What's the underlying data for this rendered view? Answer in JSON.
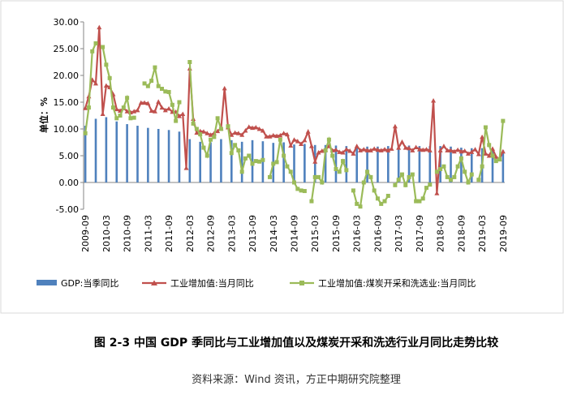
{
  "chart_data": {
    "type": "bar-line",
    "y_label": "单位：%",
    "categories": [
      "2009-09",
      null,
      null,
      null,
      null,
      null,
      "2010-03",
      null,
      null,
      null,
      null,
      null,
      "2010-09",
      null,
      null,
      null,
      null,
      null,
      "2011-03",
      null,
      null,
      null,
      null,
      null,
      "2011-09",
      null,
      null,
      null,
      null,
      null,
      "2012-03",
      null,
      null,
      null,
      null,
      null,
      "2012-09",
      null,
      null,
      null,
      null,
      null,
      "2013-03",
      null,
      null,
      null,
      null,
      null,
      "2013-09",
      null,
      null,
      null,
      null,
      null,
      "2014-03",
      null,
      null,
      null,
      null,
      null,
      "2014-09",
      null,
      null,
      null,
      null,
      null,
      "2015-03",
      null,
      null,
      null,
      null,
      null,
      "2015-09",
      null,
      null,
      null,
      null,
      null,
      "2016-03",
      null,
      null,
      null,
      null,
      null,
      "2016-09",
      null,
      null,
      null,
      null,
      null,
      "2017-03",
      null,
      null,
      null,
      null,
      null,
      "2017-09",
      null,
      null,
      null,
      null,
      null,
      "2018-03",
      null,
      null,
      null,
      null,
      null,
      "2018-09",
      null,
      null,
      null,
      null,
      null,
      "2019-03",
      null,
      null,
      null,
      null,
      null,
      "2019-09"
    ],
    "series": [
      {
        "name": "GDP:当季同比",
        "kind": "bar",
        "color": "#4f81bd",
        "values": [
          10.6,
          null,
          null,
          11.9,
          null,
          null,
          12.2,
          null,
          null,
          11.4,
          null,
          null,
          10.9,
          null,
          null,
          10.6,
          null,
          null,
          10.2,
          null,
          null,
          10.0,
          null,
          null,
          9.8,
          null,
          null,
          9.5,
          null,
          null,
          8.1,
          null,
          null,
          7.6,
          null,
          null,
          7.5,
          null,
          null,
          8.1,
          null,
          null,
          7.9,
          null,
          null,
          7.6,
          null,
          null,
          7.9,
          null,
          null,
          7.7,
          null,
          null,
          7.4,
          null,
          null,
          7.5,
          null,
          null,
          7.1,
          null,
          null,
          7.2,
          null,
          null,
          7.0,
          null,
          null,
          7.0,
          null,
          null,
          6.9,
          null,
          null,
          6.8,
          null,
          null,
          6.7,
          null,
          null,
          6.7,
          null,
          null,
          6.7,
          null,
          null,
          6.8,
          null,
          null,
          6.9,
          null,
          null,
          6.9,
          null,
          null,
          6.8,
          null,
          null,
          6.8,
          null,
          null,
          6.8,
          null,
          null,
          6.7,
          null,
          null,
          6.5,
          null,
          null,
          6.4,
          null,
          null,
          6.4,
          null,
          null,
          6.2,
          null,
          null,
          6.0
        ]
      },
      {
        "name": "工业增加值:当月同比",
        "kind": "line",
        "marker": "triangle",
        "color": "#c0504d",
        "values": [
          13.9,
          16.1,
          19.2,
          18.5,
          29.0,
          12.8,
          18.1,
          17.8,
          16.5,
          13.7,
          13.4,
          13.9,
          13.3,
          13.1,
          13.3,
          13.5,
          14.9,
          14.9,
          14.8,
          13.4,
          13.3,
          15.1,
          14.0,
          13.5,
          13.8,
          13.2,
          13.2,
          12.4,
          12.8,
          2.7,
          21.3,
          11.9,
          9.3,
          9.6,
          9.5,
          9.2,
          8.9,
          9.2,
          9.6,
          10.1,
          17.6,
          10.3,
          8.9,
          9.3,
          9.2,
          8.9,
          9.7,
          10.4,
          10.2,
          10.3,
          10.0,
          9.7,
          8.6,
          8.6,
          8.8,
          8.7,
          8.8,
          9.2,
          9.0,
          6.9,
          8.0,
          7.7,
          7.2,
          7.9,
          9.5,
          6.8,
          3.9,
          5.6,
          5.9,
          6.1,
          6.8,
          6.0,
          6.1,
          5.7,
          5.6,
          6.2,
          5.9,
          5.4,
          6.8,
          6.0,
          6.2,
          6.0,
          6.0,
          6.3,
          6.1,
          6.0,
          6.2,
          6.0,
          6.3,
          10.5,
          6.5,
          7.6,
          6.5,
          6.4,
          6.0,
          6.6,
          6.2,
          6.1,
          6.2,
          6.0,
          15.3,
          -2.0,
          6.0,
          6.8,
          6.0,
          6.0,
          5.8,
          6.1,
          5.8,
          5.9,
          5.4,
          5.7,
          6.2,
          5.3,
          8.5,
          5.4,
          5.0,
          6.3,
          4.8,
          4.4,
          5.8
        ]
      },
      {
        "name": "工业增加值:煤炭开采和洗选业:当月同比",
        "kind": "line",
        "marker": "square",
        "color": "#9bbb59",
        "values": [
          9.2,
          14.0,
          24.5,
          26.0,
          null,
          25.3,
          22.0,
          19.5,
          14.0,
          12.0,
          12.5,
          14.0,
          15.8,
          12.0,
          12.1,
          null,
          null,
          18.5,
          18.0,
          19.0,
          21.5,
          18.0,
          17.5,
          17.0,
          16.9,
          14.5,
          11.5,
          15.0,
          null,
          null,
          22.5,
          11.0,
          10.0,
          9.0,
          6.5,
          5.0,
          8.0,
          8.5,
          12.0,
          10.0,
          null,
          10.5,
          5.5,
          7.0,
          6.0,
          2.0,
          4.5,
          5.0,
          3.5,
          4.0,
          3.9,
          4.2,
          null,
          1.0,
          3.5,
          3.8,
          8.0,
          5.0,
          3.0,
          2.0,
          0.0,
          -1.2,
          -1.5,
          -1.6,
          null,
          -3.5,
          1.0,
          1.0,
          0.0,
          6.0,
          8.0,
          5.0,
          2.5,
          2.0,
          4.0,
          2.3,
          null,
          -1.5,
          -4.0,
          -4.5,
          0.0,
          2.0,
          1.0,
          -1.5,
          -3.0,
          -4.0,
          -3.5,
          -2.5,
          null,
          -0.5,
          0.5,
          1.5,
          -0.5,
          1.0,
          1.5,
          -3.5,
          -3.5,
          -3.0,
          -1.0,
          -0.4,
          null,
          2.0,
          2.5,
          3.0,
          1.0,
          0.5,
          1.0,
          3.0,
          4.5,
          2.0,
          0.0,
          1.5,
          null,
          0.5,
          3.0,
          10.3,
          7.0,
          5.0,
          4.0,
          4.3,
          11.5
        ]
      }
    ],
    "ylim": [
      -5,
      30
    ],
    "yticks": [
      {
        "value": -5,
        "label": "-5.00"
      },
      {
        "value": 0,
        "label": "0.00"
      },
      {
        "value": 5,
        "label": "5.00"
      },
      {
        "value": 10,
        "label": "10.00"
      },
      {
        "value": 15,
        "label": "15.00"
      },
      {
        "value": 20,
        "label": "20.00"
      },
      {
        "value": 25,
        "label": "25.00"
      },
      {
        "value": 30,
        "label": "30.00"
      }
    ],
    "grid": false,
    "legend": "bottom"
  },
  "caption": "图 2-3  中国 GDP 季同比与工业增加值以及煤炭开采和洗选行业月同比走势比较",
  "source": "资料来源：Wind 资讯，方正中期研究院整理"
}
